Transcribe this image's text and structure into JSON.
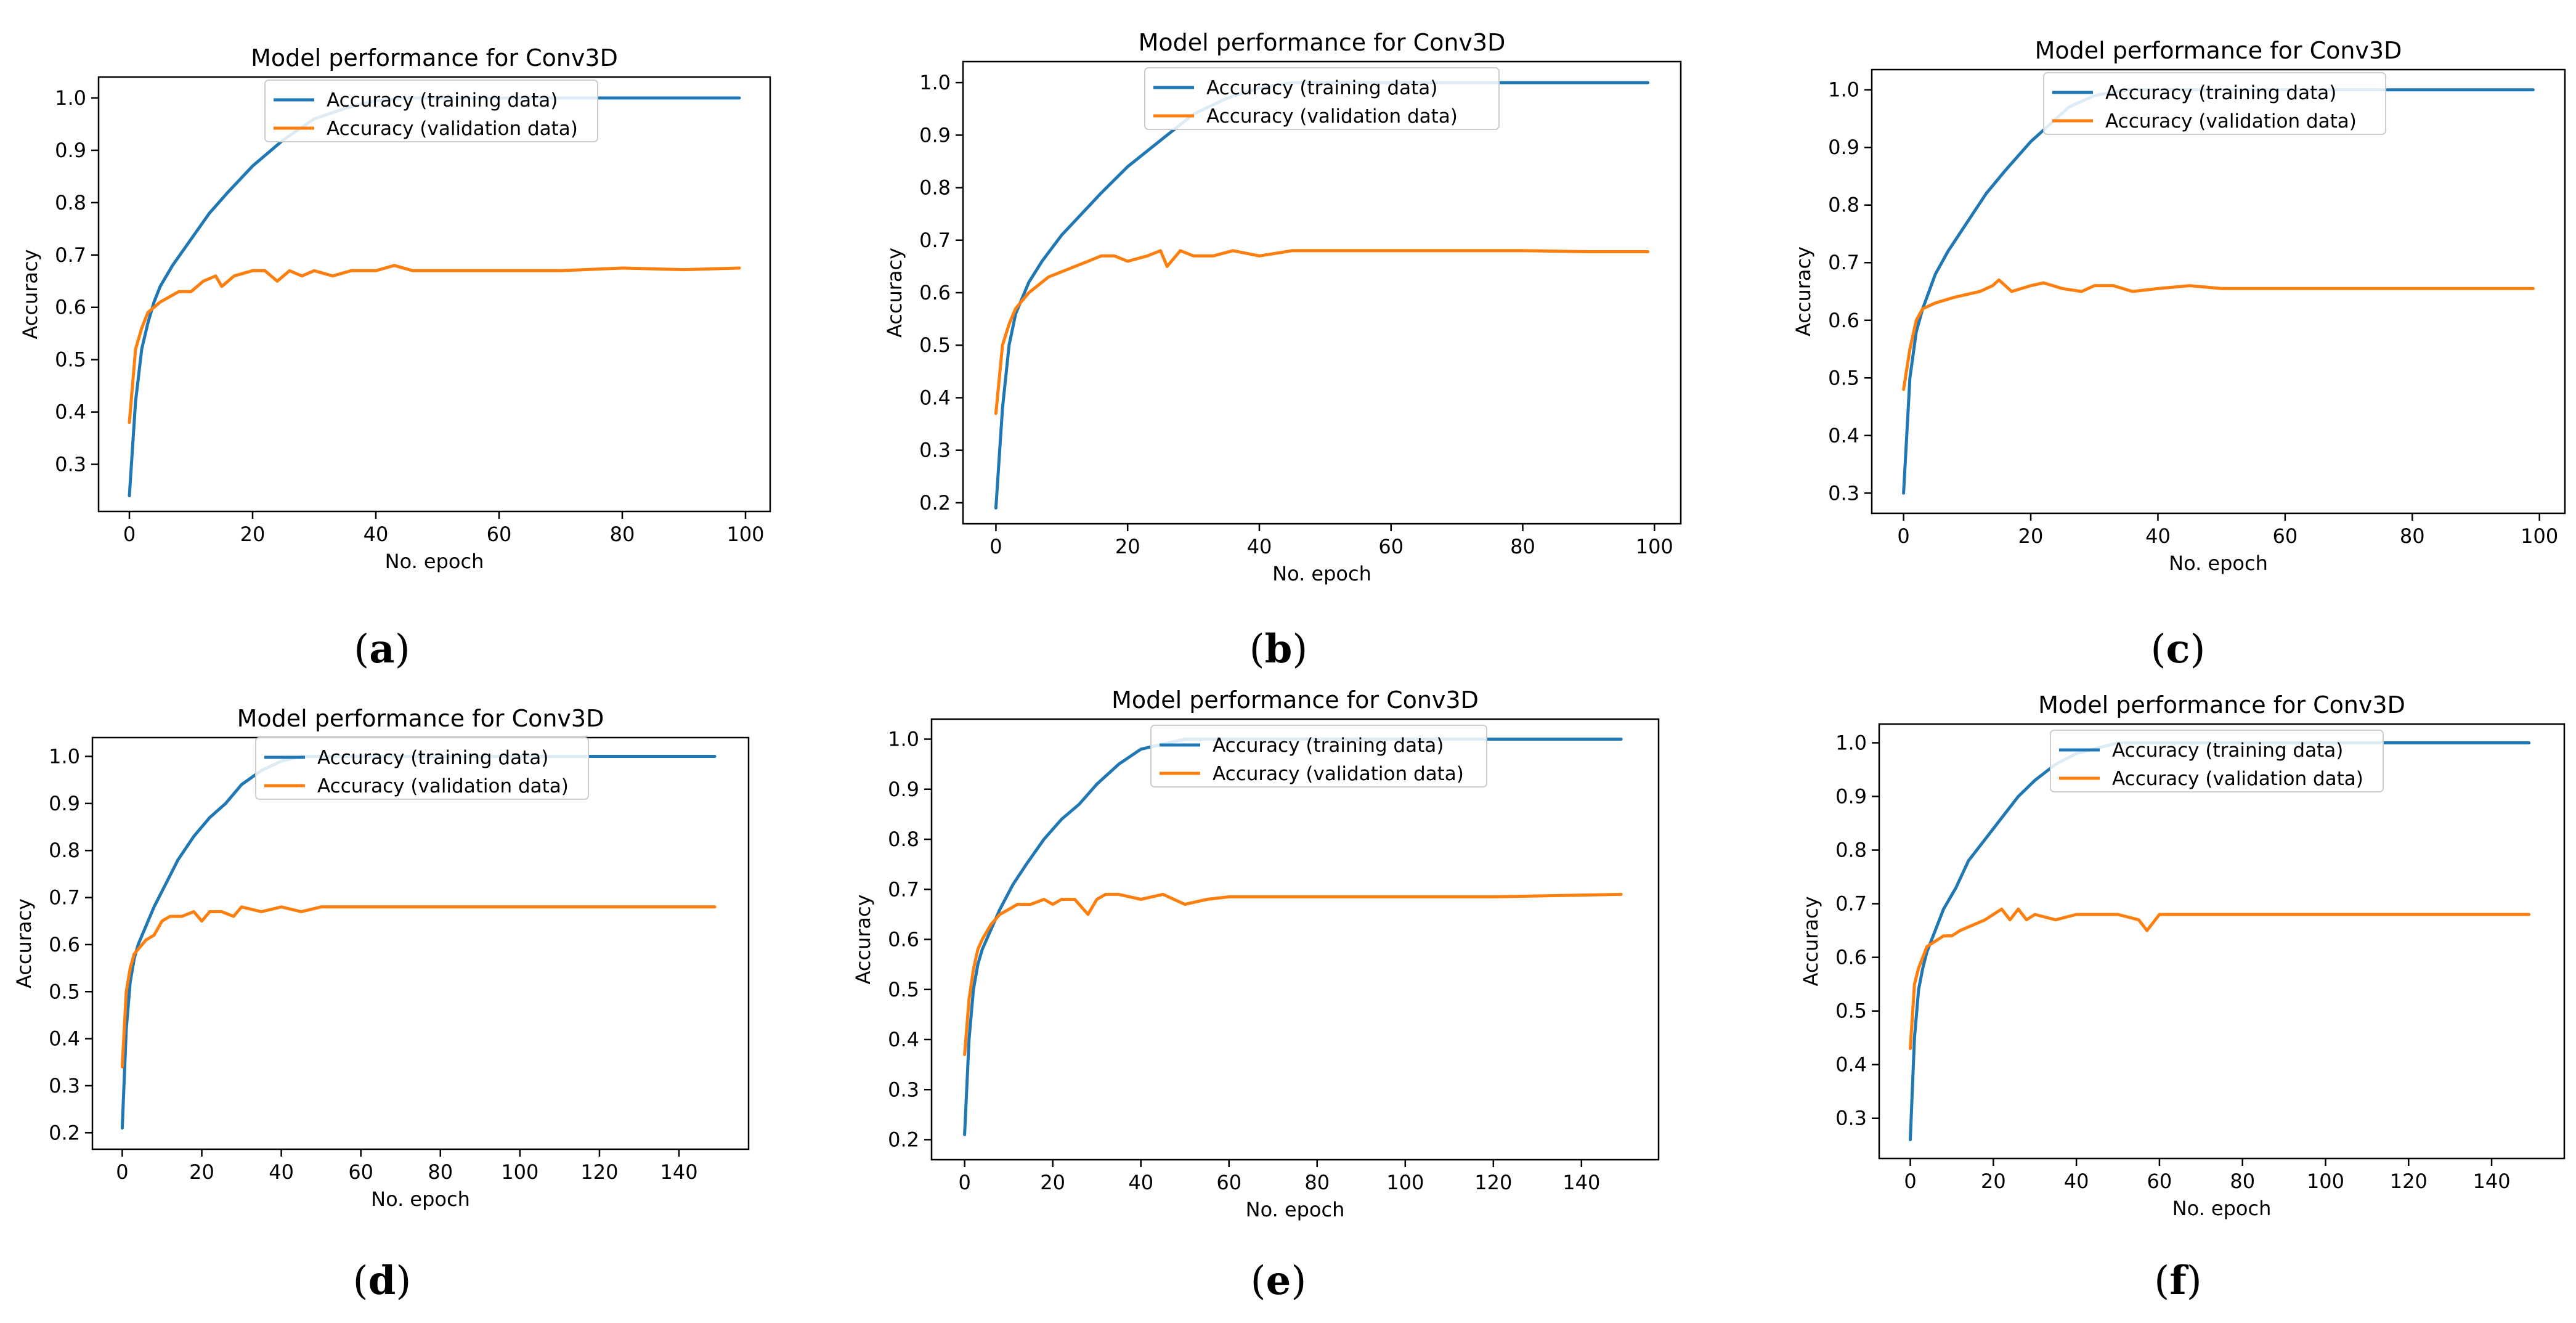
{
  "chart_data": [
    {
      "id": "a",
      "type": "line",
      "title": "Model performance for Conv3D",
      "xlabel": "No. epoch",
      "ylabel": "Accuracy",
      "caption": "a",
      "xlim": [
        -5,
        104
      ],
      "ylim": [
        0.21,
        1.04
      ],
      "xticks": [
        "0",
        "20",
        "40",
        "60",
        "80",
        "100"
      ],
      "yticks": [
        "0.3",
        "0.4",
        "0.5",
        "0.6",
        "0.7",
        "0.8",
        "0.9",
        "1.0"
      ],
      "series": [
        {
          "name": "Accuracy (training data)",
          "color": "#1f77b4",
          "x": [
            0,
            1,
            2,
            3,
            4,
            5,
            7,
            10,
            13,
            16,
            20,
            25,
            30,
            35,
            40,
            45,
            99
          ],
          "y": [
            0.24,
            0.42,
            0.52,
            0.57,
            0.61,
            0.64,
            0.68,
            0.73,
            0.78,
            0.82,
            0.87,
            0.92,
            0.96,
            0.98,
            0.995,
            1.0,
            1.0
          ]
        },
        {
          "name": "Accuracy (validation data)",
          "color": "#ff7f0e",
          "x": [
            0,
            1,
            2,
            3,
            5,
            8,
            10,
            12,
            14,
            15,
            17,
            20,
            22,
            24,
            26,
            28,
            30,
            33,
            36,
            40,
            43,
            46,
            50,
            60,
            70,
            80,
            90,
            99
          ],
          "y": [
            0.38,
            0.52,
            0.56,
            0.59,
            0.61,
            0.63,
            0.63,
            0.65,
            0.66,
            0.64,
            0.66,
            0.67,
            0.67,
            0.65,
            0.67,
            0.66,
            0.67,
            0.66,
            0.67,
            0.67,
            0.68,
            0.67,
            0.67,
            0.67,
            0.67,
            0.675,
            0.672,
            0.675
          ]
        }
      ]
    },
    {
      "id": "b",
      "type": "line",
      "title": "Model performance for Conv3D",
      "xlabel": "No. epoch",
      "ylabel": "Accuracy",
      "caption": "b",
      "xlim": [
        -5,
        104
      ],
      "ylim": [
        0.16,
        1.04
      ],
      "xticks": [
        "0",
        "20",
        "40",
        "60",
        "80",
        "100"
      ],
      "yticks": [
        "0.2",
        "0.3",
        "0.4",
        "0.5",
        "0.6",
        "0.7",
        "0.8",
        "0.9",
        "1.0"
      ],
      "series": [
        {
          "name": "Accuracy (training data)",
          "color": "#1f77b4",
          "x": [
            0,
            1,
            2,
            3,
            4,
            5,
            7,
            10,
            13,
            16,
            20,
            25,
            30,
            35,
            40,
            45,
            99
          ],
          "y": [
            0.19,
            0.38,
            0.5,
            0.56,
            0.59,
            0.62,
            0.66,
            0.71,
            0.75,
            0.79,
            0.84,
            0.89,
            0.94,
            0.97,
            0.99,
            1.0,
            1.0
          ]
        },
        {
          "name": "Accuracy (validation data)",
          "color": "#ff7f0e",
          "x": [
            0,
            1,
            2,
            3,
            5,
            8,
            10,
            12,
            14,
            16,
            18,
            20,
            23,
            25,
            26,
            28,
            30,
            33,
            36,
            40,
            45,
            50,
            60,
            70,
            80,
            90,
            99
          ],
          "y": [
            0.37,
            0.5,
            0.54,
            0.57,
            0.6,
            0.63,
            0.64,
            0.65,
            0.66,
            0.67,
            0.67,
            0.66,
            0.67,
            0.68,
            0.65,
            0.68,
            0.67,
            0.67,
            0.68,
            0.67,
            0.68,
            0.68,
            0.68,
            0.68,
            0.68,
            0.678,
            0.678
          ]
        }
      ]
    },
    {
      "id": "c",
      "type": "line",
      "title": "Model performance for Conv3D",
      "xlabel": "No. epoch",
      "ylabel": "Accuracy",
      "caption": "c",
      "xlim": [
        -5,
        104
      ],
      "ylim": [
        0.265,
        1.035
      ],
      "xticks": [
        "0",
        "20",
        "40",
        "60",
        "80",
        "100"
      ],
      "yticks": [
        "0.3",
        "0.4",
        "0.5",
        "0.6",
        "0.7",
        "0.8",
        "0.9",
        "1.0"
      ],
      "series": [
        {
          "name": "Accuracy (training data)",
          "color": "#1f77b4",
          "x": [
            0,
            1,
            2,
            3,
            4,
            5,
            7,
            10,
            13,
            16,
            20,
            23,
            26,
            30,
            35,
            40,
            99
          ],
          "y": [
            0.3,
            0.5,
            0.58,
            0.62,
            0.65,
            0.68,
            0.72,
            0.77,
            0.82,
            0.86,
            0.91,
            0.94,
            0.97,
            0.99,
            1.0,
            1.0,
            1.0
          ]
        },
        {
          "name": "Accuracy (validation data)",
          "color": "#ff7f0e",
          "x": [
            0,
            1,
            2,
            3,
            5,
            8,
            10,
            12,
            14,
            15,
            17,
            20,
            22,
            25,
            28,
            30,
            33,
            36,
            40,
            45,
            50,
            60,
            70,
            80,
            90,
            99
          ],
          "y": [
            0.48,
            0.55,
            0.6,
            0.62,
            0.63,
            0.64,
            0.645,
            0.65,
            0.66,
            0.67,
            0.65,
            0.66,
            0.665,
            0.655,
            0.65,
            0.66,
            0.66,
            0.65,
            0.655,
            0.66,
            0.655,
            0.655,
            0.655,
            0.655,
            0.655,
            0.655
          ]
        }
      ]
    },
    {
      "id": "d",
      "type": "line",
      "title": "Model performance for Conv3D",
      "xlabel": "No. epoch",
      "ylabel": "Accuracy",
      "caption": "d",
      "xlim": [
        -7.5,
        157.5
      ],
      "ylim": [
        0.165,
        1.04
      ],
      "xticks": [
        "0",
        "20",
        "40",
        "60",
        "80",
        "100",
        "120",
        "140"
      ],
      "yticks": [
        "0.2",
        "0.3",
        "0.4",
        "0.5",
        "0.6",
        "0.7",
        "0.8",
        "0.9",
        "1.0"
      ],
      "series": [
        {
          "name": "Accuracy (training data)",
          "color": "#1f77b4",
          "x": [
            0,
            1,
            2,
            3,
            4,
            6,
            8,
            11,
            14,
            18,
            22,
            26,
            30,
            35,
            40,
            45,
            50,
            149
          ],
          "y": [
            0.21,
            0.42,
            0.52,
            0.57,
            0.6,
            0.64,
            0.68,
            0.73,
            0.78,
            0.83,
            0.87,
            0.9,
            0.94,
            0.97,
            0.99,
            1.0,
            1.0,
            1.0
          ]
        },
        {
          "name": "Accuracy (validation data)",
          "color": "#ff7f0e",
          "x": [
            0,
            1,
            2,
            3,
            4,
            6,
            8,
            10,
            12,
            15,
            18,
            20,
            22,
            25,
            28,
            30,
            35,
            40,
            45,
            50,
            60,
            80,
            100,
            120,
            149
          ],
          "y": [
            0.34,
            0.5,
            0.55,
            0.58,
            0.59,
            0.61,
            0.62,
            0.65,
            0.66,
            0.66,
            0.67,
            0.65,
            0.67,
            0.67,
            0.66,
            0.68,
            0.67,
            0.68,
            0.67,
            0.68,
            0.68,
            0.68,
            0.68,
            0.68,
            0.68
          ]
        }
      ]
    },
    {
      "id": "e",
      "type": "line",
      "title": "Model performance for Conv3D",
      "xlabel": "No. epoch",
      "ylabel": "Accuracy",
      "caption": "e",
      "xlim": [
        -7.5,
        157.5
      ],
      "ylim": [
        0.16,
        1.04
      ],
      "xticks": [
        "0",
        "20",
        "40",
        "60",
        "80",
        "100",
        "120",
        "140"
      ],
      "yticks": [
        "0.2",
        "0.3",
        "0.4",
        "0.5",
        "0.6",
        "0.7",
        "0.8",
        "0.9",
        "1.0"
      ],
      "series": [
        {
          "name": "Accuracy (training data)",
          "color": "#1f77b4",
          "x": [
            0,
            1,
            2,
            3,
            4,
            6,
            8,
            11,
            14,
            18,
            22,
            26,
            30,
            35,
            40,
            45,
            50,
            55,
            149
          ],
          "y": [
            0.21,
            0.4,
            0.5,
            0.55,
            0.58,
            0.62,
            0.66,
            0.71,
            0.75,
            0.8,
            0.84,
            0.87,
            0.91,
            0.95,
            0.98,
            0.99,
            1.0,
            1.0,
            1.0
          ]
        },
        {
          "name": "Accuracy (validation data)",
          "color": "#ff7f0e",
          "x": [
            0,
            1,
            2,
            3,
            4,
            6,
            8,
            10,
            12,
            15,
            18,
            20,
            22,
            25,
            28,
            30,
            32,
            35,
            40,
            45,
            50,
            55,
            60,
            80,
            100,
            120,
            149
          ],
          "y": [
            0.37,
            0.48,
            0.54,
            0.58,
            0.6,
            0.63,
            0.65,
            0.66,
            0.67,
            0.67,
            0.68,
            0.67,
            0.68,
            0.68,
            0.65,
            0.68,
            0.69,
            0.69,
            0.68,
            0.69,
            0.67,
            0.68,
            0.685,
            0.685,
            0.685,
            0.685,
            0.69
          ]
        }
      ]
    },
    {
      "id": "f",
      "type": "line",
      "title": "Model performance for Conv3D",
      "xlabel": "No. epoch",
      "ylabel": "Accuracy",
      "caption": "f",
      "xlim": [
        -7.5,
        157.5
      ],
      "ylim": [
        0.225,
        1.035
      ],
      "xticks": [
        "0",
        "20",
        "40",
        "60",
        "80",
        "100",
        "120",
        "140"
      ],
      "yticks": [
        "0.3",
        "0.4",
        "0.5",
        "0.6",
        "0.7",
        "0.8",
        "0.9",
        "1.0"
      ],
      "series": [
        {
          "name": "Accuracy (training data)",
          "color": "#1f77b4",
          "x": [
            0,
            1,
            2,
            3,
            4,
            6,
            8,
            11,
            14,
            18,
            22,
            26,
            30,
            35,
            40,
            45,
            50,
            149
          ],
          "y": [
            0.26,
            0.45,
            0.54,
            0.58,
            0.61,
            0.65,
            0.69,
            0.73,
            0.78,
            0.82,
            0.86,
            0.9,
            0.93,
            0.96,
            0.98,
            0.99,
            1.0,
            1.0
          ]
        },
        {
          "name": "Accuracy (validation data)",
          "color": "#ff7f0e",
          "x": [
            0,
            1,
            2,
            3,
            4,
            6,
            8,
            10,
            12,
            15,
            18,
            20,
            22,
            24,
            26,
            28,
            30,
            35,
            40,
            45,
            50,
            55,
            57,
            60,
            70,
            80,
            100,
            120,
            149
          ],
          "y": [
            0.43,
            0.55,
            0.58,
            0.6,
            0.62,
            0.63,
            0.64,
            0.64,
            0.65,
            0.66,
            0.67,
            0.68,
            0.69,
            0.67,
            0.69,
            0.67,
            0.68,
            0.67,
            0.68,
            0.68,
            0.68,
            0.67,
            0.65,
            0.68,
            0.68,
            0.68,
            0.68,
            0.68,
            0.68
          ]
        }
      ]
    }
  ]
}
